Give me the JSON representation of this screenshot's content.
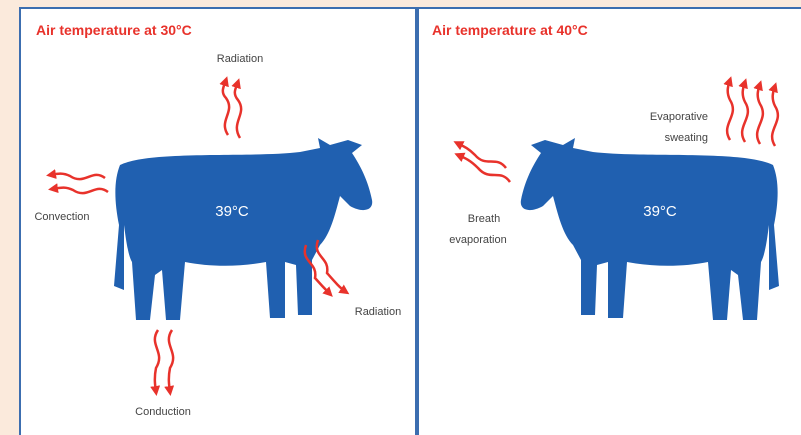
{
  "panels": [
    {
      "title": "Air temperature at 30°C",
      "body_temp": "39°C",
      "labels": {
        "radiation_top": "Radiation",
        "convection": "Convection",
        "radiation_side": "Radiation",
        "conduction": "Conduction"
      }
    },
    {
      "title": "Air temperature at 40°C",
      "body_temp": "39°C",
      "labels": {
        "breath_evaporation": [
          "Breath",
          "evaporation"
        ],
        "evaporative_sweating": [
          "Evaporative",
          "sweating"
        ]
      }
    }
  ]
}
